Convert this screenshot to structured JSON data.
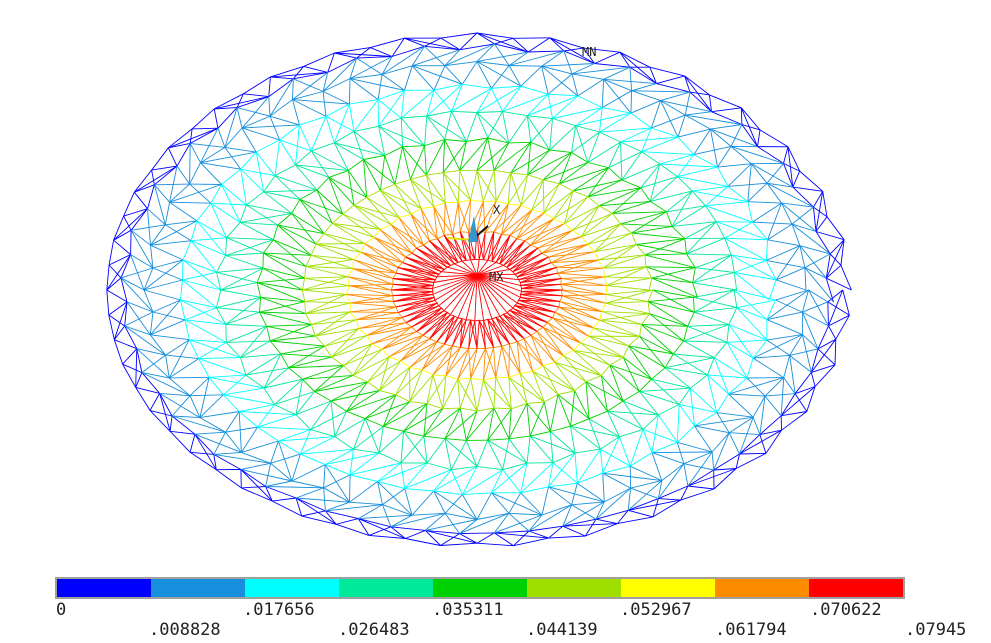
{
  "markers": {
    "min": "MN",
    "max": "MX",
    "axis": "X"
  },
  "legend": {
    "colors": [
      "#0000ff",
      "#178fdc",
      "#00ffff",
      "#00e89a",
      "#00d100",
      "#a0e000",
      "#ffff00",
      "#ff8c00",
      "#ff0000"
    ],
    "top_labels": [
      "0",
      ".017656",
      ".035311",
      ".052967",
      ".070622"
    ],
    "bottom_labels": [
      ".008828",
      ".026483",
      ".044139",
      ".061794",
      ".07945"
    ]
  }
}
